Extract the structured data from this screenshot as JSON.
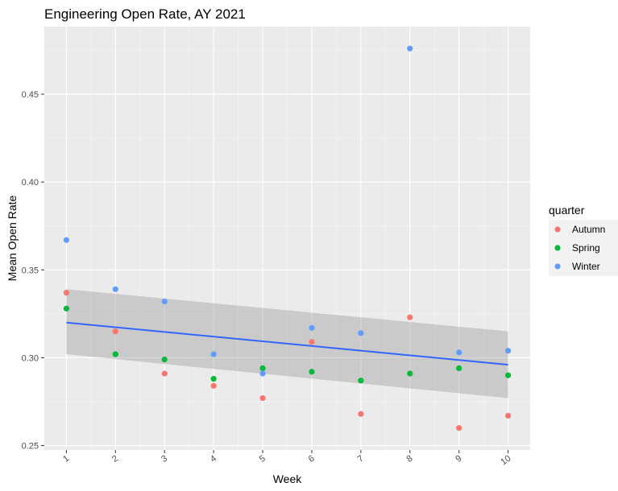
{
  "chart_data": {
    "type": "scatter",
    "title": "Engineering Open Rate, AY 2021",
    "xlabel": "Week",
    "ylabel": "Mean Open Rate",
    "x": [
      1,
      2,
      3,
      4,
      5,
      6,
      7,
      8,
      9,
      10
    ],
    "x_tick_labels": [
      "1",
      "2",
      "3",
      "4",
      "5",
      "6",
      "7",
      "8",
      "9",
      "10"
    ],
    "y_ticks": [
      0.25,
      0.3,
      0.35,
      0.4,
      0.45
    ],
    "y_tick_labels": [
      "0.25",
      "0.30",
      "0.35",
      "0.40",
      "0.45"
    ],
    "xlim": [
      0.55,
      10.45
    ],
    "ylim": [
      0.2475,
      0.4885
    ],
    "grid": true,
    "legend": {
      "title": "quarter",
      "position": "right"
    },
    "series": [
      {
        "name": "Autumn",
        "color": "#F8766D",
        "values": [
          0.337,
          0.315,
          0.291,
          0.284,
          0.277,
          0.309,
          0.268,
          0.323,
          0.26,
          0.267
        ]
      },
      {
        "name": "Spring",
        "color": "#00BA38",
        "values": [
          0.328,
          0.302,
          0.299,
          0.288,
          0.294,
          0.292,
          0.287,
          0.291,
          0.294,
          0.29
        ]
      },
      {
        "name": "Winter",
        "color": "#619CFF",
        "values": [
          0.367,
          0.339,
          0.332,
          0.302,
          0.291,
          0.317,
          0.314,
          0.476,
          0.303,
          0.304
        ]
      }
    ],
    "trend": {
      "method": "linear",
      "color": "#3366FF",
      "ribbon_color": "#999999",
      "x": [
        1,
        10
      ],
      "fit": [
        0.32,
        0.296
      ],
      "lower": [
        0.302,
        0.277
      ],
      "upper": [
        0.339,
        0.315
      ]
    }
  }
}
